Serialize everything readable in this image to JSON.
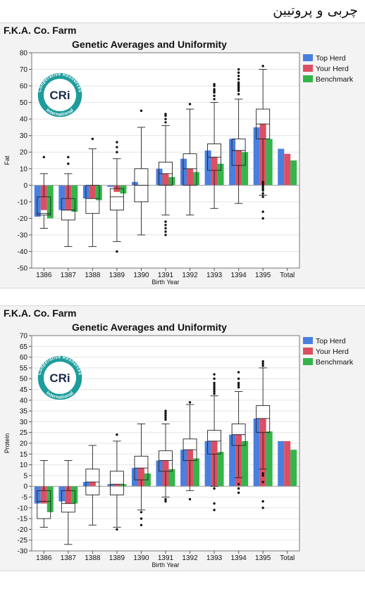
{
  "page_heading": "چربی و پروتیین",
  "colors": {
    "top_herd": "#4a7fe0",
    "your_herd": "#dc4f62",
    "benchmark": "#34b54a"
  },
  "logo": {
    "arc_text": "Cooperative Resources",
    "bottom_text": "International",
    "mark": "CRi"
  },
  "chart_data": [
    {
      "type": "bar",
      "farm": "F.K.A. Co. Farm",
      "title": "Genetic Averages and Uniformity",
      "xlabel": "Birth Year",
      "ylabel": "Fat",
      "ylim": [
        -50,
        80
      ],
      "yticks": [
        -50,
        -40,
        -30,
        -20,
        -10,
        0,
        10,
        20,
        30,
        40,
        50,
        60,
        70,
        80
      ],
      "categories": [
        "1386",
        "1387",
        "1388",
        "1389",
        "1390",
        "1391",
        "1392",
        "1393",
        "1394",
        "1395",
        "Total"
      ],
      "grid": true,
      "legend_position": "right",
      "series": [
        {
          "name": "Top Herd",
          "values": [
            -19,
            -15,
            -8,
            -1,
            2,
            10,
            16,
            21,
            28,
            35,
            22
          ]
        },
        {
          "name": "Your Herd",
          "values": [
            -15,
            -15,
            -8,
            -4,
            0,
            7,
            10,
            17,
            21,
            37,
            19
          ]
        },
        {
          "name": "Benchmark",
          "values": [
            -20,
            -16,
            -9,
            -5,
            0,
            5,
            8,
            13,
            20,
            28,
            15
          ]
        }
      ],
      "boxes": [
        {
          "min": -26,
          "q1": -18,
          "median": -17,
          "q3": -7,
          "max": 7,
          "outliers": [
            17
          ]
        },
        {
          "min": -37,
          "q1": -21,
          "median": -15,
          "q3": -8,
          "max": 7,
          "outliers": [
            13,
            17
          ]
        },
        {
          "min": -37,
          "q1": -17,
          "median": -8,
          "q3": 0,
          "max": 22,
          "outliers": [
            28
          ]
        },
        {
          "min": -34,
          "q1": -15,
          "median": -7,
          "q3": -2,
          "max": 16,
          "outliers": [
            -40,
            20,
            23,
            26
          ]
        },
        {
          "min": -30,
          "q1": -10,
          "median": 0,
          "q3": 10,
          "max": 35,
          "outliers": [
            45
          ]
        },
        {
          "min": -18,
          "q1": 0,
          "median": 7,
          "q3": 14,
          "max": 36,
          "outliers": [
            -30,
            -28,
            -26,
            -24,
            -22,
            38,
            40,
            42,
            43
          ]
        },
        {
          "min": -18,
          "q1": 0,
          "median": 10,
          "q3": 19,
          "max": 46,
          "outliers": [
            49
          ]
        },
        {
          "min": -14,
          "q1": 9,
          "median": 17,
          "q3": 25,
          "max": 50,
          "outliers": [
            52,
            54,
            56,
            57,
            58,
            60,
            61
          ]
        },
        {
          "min": -11,
          "q1": 12,
          "median": 21,
          "q3": 28,
          "max": 52,
          "outliers": [
            55,
            57,
            58,
            59,
            60,
            61,
            62,
            64,
            66,
            68,
            70
          ]
        },
        {
          "min": -6,
          "q1": 28,
          "median": 37,
          "q3": 46,
          "max": 70,
          "outliers": [
            -20,
            -16,
            -7,
            -5,
            -3,
            -2,
            -1,
            0,
            1,
            2,
            72
          ]
        }
      ]
    },
    {
      "type": "bar",
      "farm": "F.K.A. Co. Farm",
      "title": "Genetic Averages and Uniformity",
      "xlabel": "Birth Year",
      "ylabel": "Protein",
      "ylim": [
        -30,
        70
      ],
      "yticks": [
        -30,
        -25,
        -20,
        -15,
        -10,
        -5,
        0,
        5,
        10,
        15,
        20,
        25,
        30,
        35,
        40,
        45,
        50,
        55,
        60,
        65,
        70
      ],
      "categories": [
        "1386",
        "1387",
        "1388",
        "1389",
        "1390",
        "1391",
        "1392",
        "1393",
        "1394",
        "1395",
        "Total"
      ],
      "grid": true,
      "legend_position": "right",
      "series": [
        {
          "name": "Top Herd",
          "values": [
            -8,
            -7,
            2,
            1,
            8.5,
            12,
            17,
            21,
            24,
            31.5,
            21
          ]
        },
        {
          "name": "Your Herd",
          "values": [
            -8,
            -8,
            2,
            1,
            8.5,
            12,
            17,
            21,
            24,
            31.5,
            21
          ]
        },
        {
          "name": "Benchmark",
          "values": [
            -12,
            -8,
            0,
            1,
            6,
            8,
            13,
            16,
            21,
            25.5,
            17
          ]
        }
      ],
      "boxes": [
        {
          "min": -19,
          "q1": -15,
          "median": -7,
          "q3": -2,
          "max": 12,
          "outliers": []
        },
        {
          "min": -27,
          "q1": -12,
          "median": -8,
          "q3": -2,
          "max": 12,
          "outliers": []
        },
        {
          "min": -18,
          "q1": -4,
          "median": 2,
          "q3": 8,
          "max": 19,
          "outliers": []
        },
        {
          "min": -19,
          "q1": -4,
          "median": 1,
          "q3": 7,
          "max": 21,
          "outliers": [
            -20,
            24
          ]
        },
        {
          "min": -11,
          "q1": 3,
          "median": 8.5,
          "q3": 14,
          "max": 29,
          "outliers": [
            -18,
            -15,
            -12
          ]
        },
        {
          "min": -5,
          "q1": 7,
          "median": 12,
          "q3": 16.5,
          "max": 29,
          "outliers": [
            -7,
            -6,
            31,
            32,
            33,
            34,
            35
          ]
        },
        {
          "min": -2,
          "q1": 12,
          "median": 17,
          "q3": 22,
          "max": 38,
          "outliers": [
            -6,
            39
          ]
        },
        {
          "min": 0,
          "q1": 15,
          "median": 21,
          "q3": 26,
          "max": 42,
          "outliers": [
            -11,
            -8,
            -1,
            43,
            44,
            45,
            46,
            47,
            48,
            50,
            52
          ]
        },
        {
          "min": 4,
          "q1": 19,
          "median": 24,
          "q3": 29,
          "max": 44,
          "outliers": [
            -3,
            -1,
            1,
            46,
            47,
            48,
            50,
            53
          ]
        },
        {
          "min": 8,
          "q1": 25,
          "median": 31.5,
          "q3": 37.5,
          "max": 55,
          "outliers": [
            -10,
            -7,
            2,
            5,
            6,
            56,
            57,
            58
          ]
        }
      ]
    }
  ]
}
